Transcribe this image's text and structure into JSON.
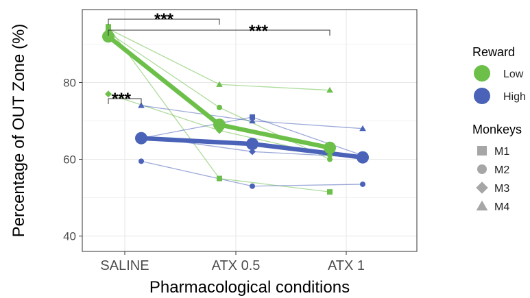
{
  "chart_data": {
    "type": "line",
    "xlabel": "Pharmacological conditions",
    "ylabel": "Percentage of OUT Zone (%)",
    "categories": [
      "SALINE",
      "ATX 0.5",
      "ATX 1"
    ],
    "ylim": [
      36,
      99
    ],
    "yticks": [
      40,
      60,
      80
    ],
    "grid": true,
    "colors": {
      "Low": "#6cc04a",
      "High": "#4a63b8",
      "monkey_marker": "#a6a6a6"
    },
    "series": [
      {
        "name": "Low",
        "group": "mean",
        "values": [
          92,
          69,
          63
        ]
      },
      {
        "name": "High",
        "group": "mean",
        "values": [
          65.5,
          64,
          60.5
        ]
      },
      {
        "name": "M1",
        "reward": "Low",
        "values": [
          94.5,
          55,
          51.5
        ]
      },
      {
        "name": "M2",
        "reward": "Low",
        "values": [
          93,
          73.5,
          60
        ]
      },
      {
        "name": "M3",
        "reward": "Low",
        "values": [
          77,
          67.5,
          61
        ]
      },
      {
        "name": "M4",
        "reward": "Low",
        "values": [
          94,
          79.5,
          78
        ]
      },
      {
        "name": "M1",
        "reward": "High",
        "values": [
          65.5,
          71,
          61
        ]
      },
      {
        "name": "M2",
        "reward": "High",
        "values": [
          59.5,
          53,
          53.5
        ]
      },
      {
        "name": "M3",
        "reward": "High",
        "values": [
          66,
          62,
          60.5
        ]
      },
      {
        "name": "M4",
        "reward": "High",
        "values": [
          74,
          70,
          68
        ]
      }
    ],
    "legend": {
      "reward_title": "Reward",
      "reward_items": [
        {
          "label": "Low",
          "color": "#6cc04a"
        },
        {
          "label": "High",
          "color": "#4a63b8"
        }
      ],
      "monkeys_title": "Monkeys",
      "monkey_items": [
        {
          "label": "M1",
          "shape": "square"
        },
        {
          "label": "M2",
          "shape": "circle"
        },
        {
          "label": "M3",
          "shape": "diamond"
        },
        {
          "label": "M4",
          "shape": "triangle"
        }
      ]
    },
    "annotations": [
      {
        "text": "***",
        "from": "SALINE Low",
        "to": "ATX 0.5 Low"
      },
      {
        "text": "***",
        "from": "SALINE Low",
        "to": "ATX 1 Low"
      },
      {
        "text": "***",
        "from": "SALINE Low",
        "to": "SALINE High"
      }
    ]
  }
}
